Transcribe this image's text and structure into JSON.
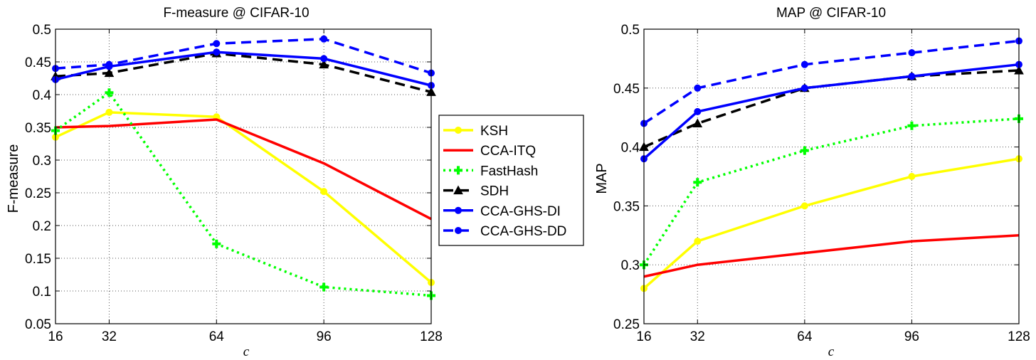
{
  "series_styles": [
    {
      "name": "KSH",
      "color": "#ffff00",
      "dash": "solid",
      "marker": "circle"
    },
    {
      "name": "CCA-ITQ",
      "color": "#ff0000",
      "dash": "solid",
      "marker": "none"
    },
    {
      "name": "FastHash",
      "color": "#00ff00",
      "dash": "dotted",
      "marker": "plus"
    },
    {
      "name": "SDH",
      "color": "#000000",
      "dash": "dashed",
      "marker": "triangle"
    },
    {
      "name": "CCA-GHS-DI",
      "color": "#0000ff",
      "dash": "solid",
      "marker": "circle"
    },
    {
      "name": "CCA-GHS-DD",
      "color": "#0000ff",
      "dash": "dashed",
      "marker": "circle"
    }
  ],
  "legend": {
    "placement": "between-charts",
    "entries": [
      "KSH",
      "CCA-ITQ",
      "FastHash",
      "SDH",
      "CCA-GHS-DI",
      "CCA-GHS-DD"
    ]
  },
  "chart_data": [
    {
      "type": "line",
      "title": "F-measure @ CIFAR-10",
      "xlabel": "c",
      "ylabel": "F-measure",
      "x": [
        16,
        32,
        64,
        96,
        128
      ],
      "xticks": [
        "16",
        "32",
        "64",
        "96",
        "128"
      ],
      "xlim": [
        16,
        128
      ],
      "ylim": [
        0.05,
        0.5
      ],
      "yticks": [
        "0.05",
        "0.1",
        "0.15",
        "0.2",
        "0.25",
        "0.3",
        "0.35",
        "0.4",
        "0.45",
        "0.5"
      ],
      "grid": true,
      "series": [
        {
          "name": "KSH",
          "values": [
            0.335,
            0.373,
            0.366,
            0.252,
            0.113
          ]
        },
        {
          "name": "CCA-ITQ",
          "values": [
            0.35,
            0.352,
            0.362,
            0.295,
            0.21
          ]
        },
        {
          "name": "FastHash",
          "values": [
            0.345,
            0.403,
            0.172,
            0.106,
            0.093
          ]
        },
        {
          "name": "SDH",
          "values": [
            0.428,
            0.433,
            0.463,
            0.446,
            0.404
          ]
        },
        {
          "name": "CCA-GHS-DI",
          "values": [
            0.423,
            0.443,
            0.465,
            0.455,
            0.414
          ]
        },
        {
          "name": "CCA-GHS-DD",
          "values": [
            0.44,
            0.446,
            0.478,
            0.485,
            0.433
          ]
        }
      ]
    },
    {
      "type": "line",
      "title": "MAP @ CIFAR-10",
      "xlabel": "c",
      "ylabel": "MAP",
      "x": [
        16,
        32,
        64,
        96,
        128
      ],
      "xticks": [
        "16",
        "32",
        "64",
        "96",
        "128"
      ],
      "xlim": [
        16,
        128
      ],
      "ylim": [
        0.25,
        0.5
      ],
      "yticks": [
        "0.25",
        "0.3",
        "0.35",
        "0.4",
        "0.45",
        "0.5"
      ],
      "grid": true,
      "series": [
        {
          "name": "KSH",
          "values": [
            0.28,
            0.32,
            0.35,
            0.375,
            0.39
          ]
        },
        {
          "name": "CCA-ITQ",
          "values": [
            0.29,
            0.3,
            0.31,
            0.32,
            0.325
          ]
        },
        {
          "name": "FastHash",
          "values": [
            0.3,
            0.37,
            0.397,
            0.418,
            0.424
          ]
        },
        {
          "name": "SDH",
          "values": [
            0.4,
            0.42,
            0.45,
            0.46,
            0.465
          ]
        },
        {
          "name": "CCA-GHS-DI",
          "values": [
            0.39,
            0.43,
            0.45,
            0.46,
            0.47
          ]
        },
        {
          "name": "CCA-GHS-DD",
          "values": [
            0.42,
            0.45,
            0.47,
            0.48,
            0.49
          ]
        }
      ]
    }
  ]
}
